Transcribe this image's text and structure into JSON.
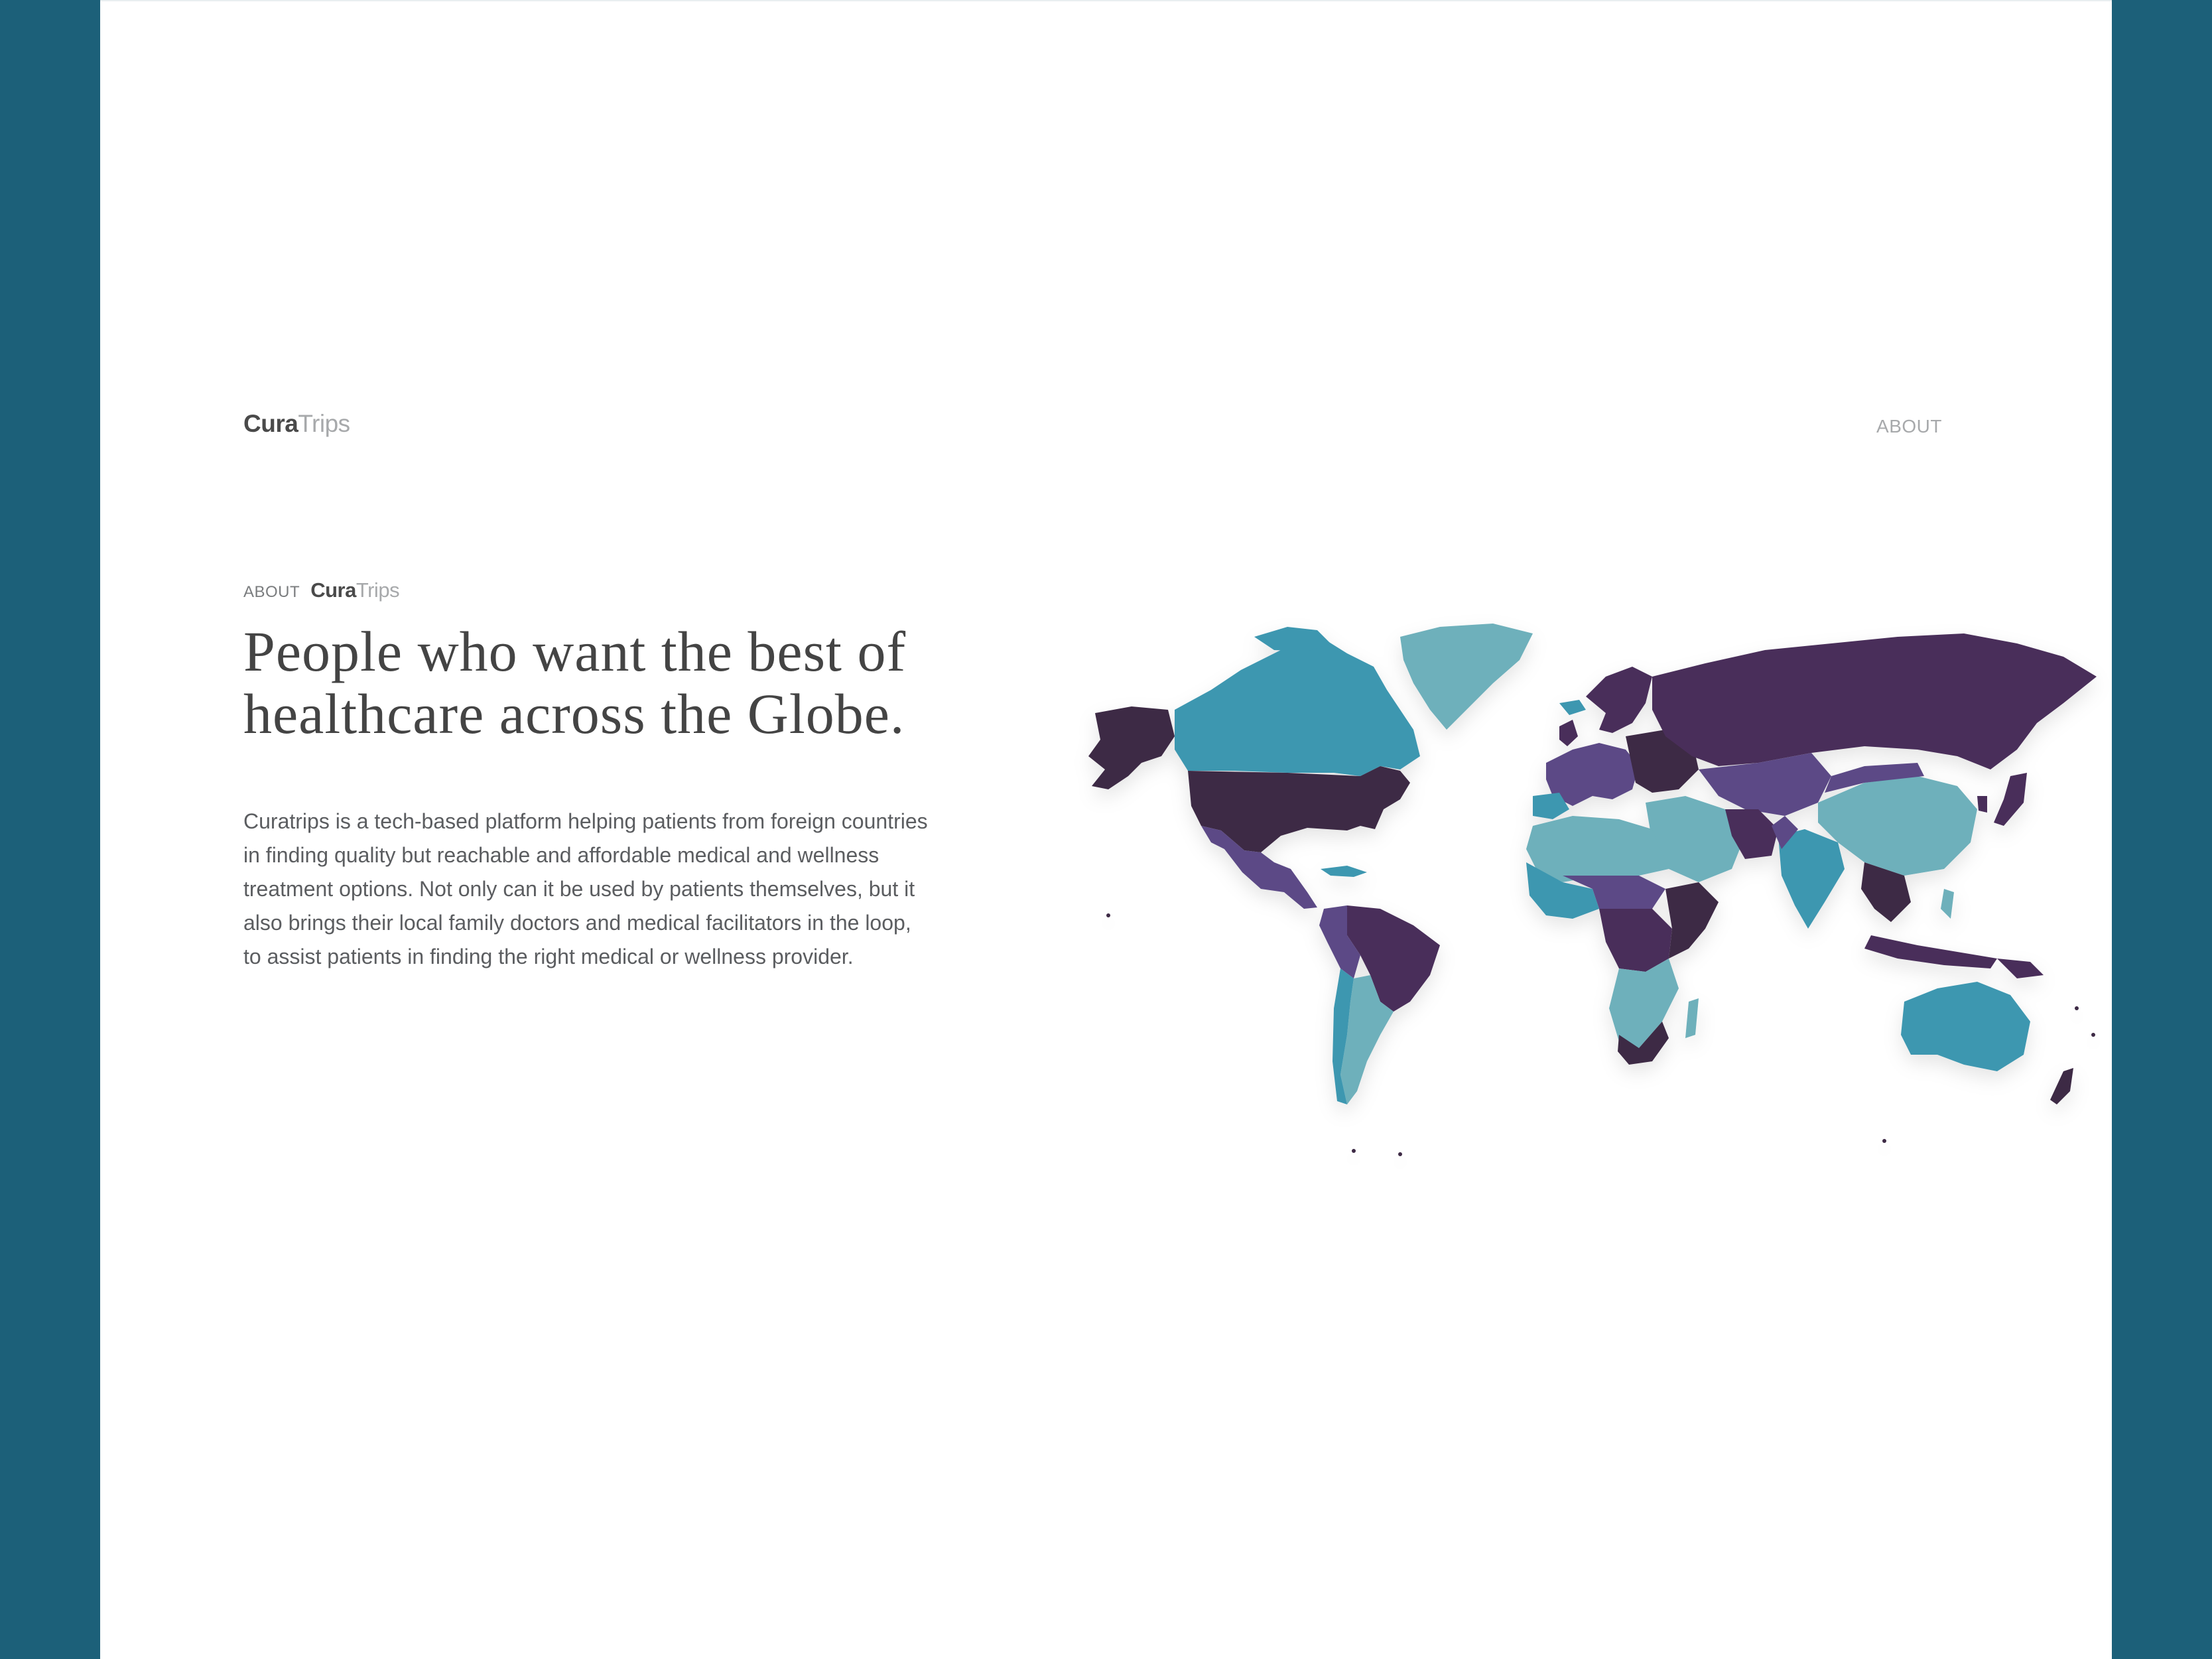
{
  "brand": {
    "name_strong": "Cura",
    "name_light": "Trips"
  },
  "nav": {
    "about": "ABOUT"
  },
  "eyebrow": {
    "label": "ABOUT",
    "brand_strong": "Cura",
    "brand_light": "Trips"
  },
  "headline": "People who want the best of healthcare across the Globe.",
  "body": "Curatrips is a tech-based platform helping patients from foreign countries in finding quality but reachable and affordable medical and wellness treatment options. Not only can it be used by patients themselves, but it also brings their local family doctors and medical facilitators in the loop, to assist patients in finding the right medical or wellness provider.",
  "colors": {
    "frame": "#1c6079",
    "dark_purple": "#3d2a45",
    "purple": "#4a2f5a",
    "violet": "#5b4a86",
    "teal": "#3e97b0",
    "light_teal": "#6eb0bb",
    "slate": "#6b86a8"
  },
  "map": {
    "icon": "world-map-icon"
  }
}
